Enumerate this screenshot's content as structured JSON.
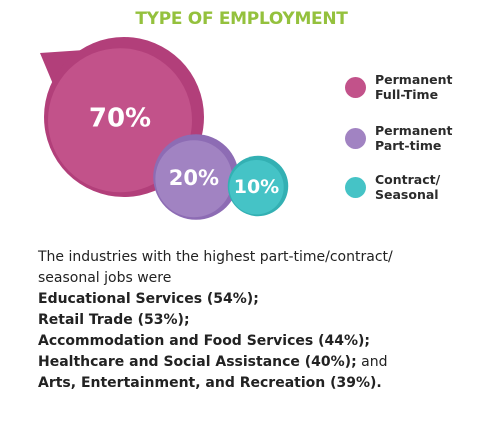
{
  "title": "TYPE OF EMPLOYMENT",
  "chart_data": {
    "type": "bubble",
    "title": "TYPE OF EMPLOYMENT",
    "series": [
      {
        "name": "Permanent Full-Time",
        "value": 70,
        "label": "70%",
        "color": "#c2528a"
      },
      {
        "name": "Permanent Part-time",
        "value": 20,
        "label": "20%",
        "color": "#a183c2"
      },
      {
        "name": "Contract/ Seasonal",
        "value": 10,
        "label": "10%",
        "color": "#45c3c6"
      }
    ],
    "legend_position": "right"
  },
  "legend": [
    {
      "line1": "Permanent",
      "line2": "Full-Time",
      "color": "#c2528a"
    },
    {
      "line1": "Permanent",
      "line2": "Part-time",
      "color": "#a183c2"
    },
    {
      "line1": "Contract/",
      "line2": "Seasonal",
      "color": "#45c3c6"
    }
  ],
  "text": {
    "intro_line1": "The industries with the highest part-time/contract/",
    "intro_line2": "seasonal jobs were",
    "items": [
      "Educational Services (54%);",
      "Retail Trade (53%);",
      "Accommodation and Food Services (44%);",
      "Healthcare and Social Assistance (40%);"
    ],
    "connector": "and",
    "last_item": "Arts, Entertainment, and Recreation (39%)."
  }
}
